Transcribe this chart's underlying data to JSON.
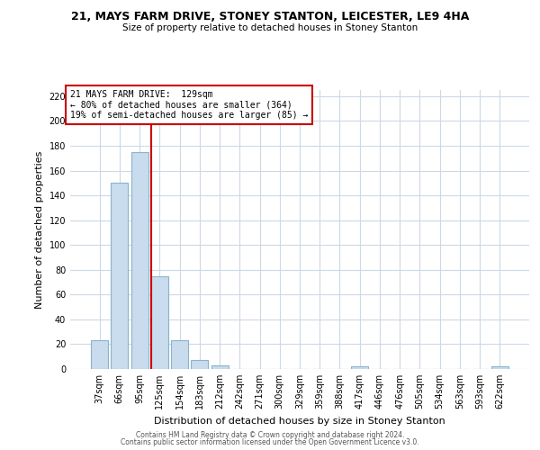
{
  "title1": "21, MAYS FARM DRIVE, STONEY STANTON, LEICESTER, LE9 4HA",
  "title2": "Size of property relative to detached houses in Stoney Stanton",
  "xlabel": "Distribution of detached houses by size in Stoney Stanton",
  "ylabel": "Number of detached properties",
  "bar_labels": [
    "37sqm",
    "66sqm",
    "95sqm",
    "125sqm",
    "154sqm",
    "183sqm",
    "212sqm",
    "242sqm",
    "271sqm",
    "300sqm",
    "329sqm",
    "359sqm",
    "388sqm",
    "417sqm",
    "446sqm",
    "476sqm",
    "505sqm",
    "534sqm",
    "563sqm",
    "593sqm",
    "622sqm"
  ],
  "bar_heights": [
    23,
    150,
    175,
    75,
    23,
    7,
    3,
    0,
    0,
    0,
    0,
    0,
    0,
    2,
    0,
    0,
    0,
    0,
    0,
    0,
    2
  ],
  "bar_color": "#c8dced",
  "bar_edge_color": "#8ab4cc",
  "vline_color": "#cc0000",
  "annotation_line1": "21 MAYS FARM DRIVE:  129sqm",
  "annotation_line2": "← 80% of detached houses are smaller (364)",
  "annotation_line3": "19% of semi-detached houses are larger (85) →",
  "annotation_box_color": "#ffffff",
  "annotation_box_edge": "#cc0000",
  "ylim": [
    0,
    225
  ],
  "yticks": [
    0,
    20,
    40,
    60,
    80,
    100,
    120,
    140,
    160,
    180,
    200,
    220
  ],
  "footer1": "Contains HM Land Registry data © Crown copyright and database right 2024.",
  "footer2": "Contains public sector information licensed under the Open Government Licence v3.0.",
  "bg_color": "#ffffff",
  "grid_color": "#ccd9e6"
}
